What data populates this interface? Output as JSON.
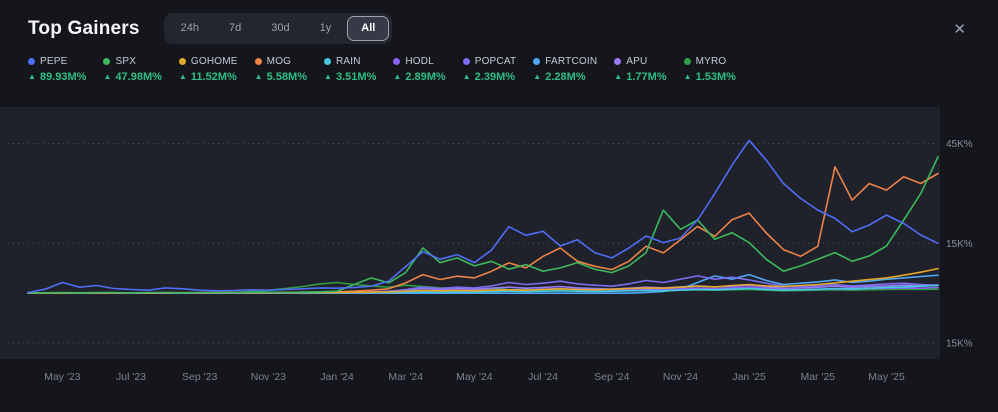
{
  "icons": {
    "close": "✕",
    "up_arrow": "▲"
  },
  "colors": {
    "background": "#14161c",
    "plot_background": "#1f222b",
    "gridline": "#4d525e",
    "positive": "#2ebd85"
  },
  "header": {
    "title": "Top Gainers",
    "ranges": [
      {
        "label": "24h",
        "active": false
      },
      {
        "label": "7d",
        "active": false
      },
      {
        "label": "30d",
        "active": false
      },
      {
        "label": "1y",
        "active": false
      },
      {
        "label": "All",
        "active": true
      }
    ]
  },
  "legend": [
    {
      "name": "PEPE",
      "color": "#4f6df6",
      "change": "89.93M%"
    },
    {
      "name": "SPX",
      "color": "#3cb85c",
      "change": "47.98M%"
    },
    {
      "name": "GOHOME",
      "color": "#e3a82b",
      "change": "11.52M%"
    },
    {
      "name": "MOG",
      "color": "#ee8147",
      "change": "5.58M%"
    },
    {
      "name": "RAIN",
      "color": "#46c8e0",
      "change": "3.51M%"
    },
    {
      "name": "HODL",
      "color": "#8a63f5",
      "change": "2.89M%"
    },
    {
      "name": "POPCAT",
      "color": "#7b6cf0",
      "change": "2.39M%"
    },
    {
      "name": "FARTCOIN",
      "color": "#4fa8f5",
      "change": "2.28M%"
    },
    {
      "name": "APU",
      "color": "#9a7bf7",
      "change": "1.77M%"
    },
    {
      "name": "MYRO",
      "color": "#2f9e44",
      "change": "1.53M%"
    }
  ],
  "chart_data": {
    "type": "line",
    "values_unit": "K% (thousands of percent)",
    "legend_position": "top",
    "grid": "dotted-horizontal",
    "n_points": 54,
    "ylim": [
      -18,
      53
    ],
    "gridlines": [
      {
        "value": 45,
        "label": "45K%"
      },
      {
        "value": 15,
        "label": "15K%"
      },
      {
        "value": -15,
        "label": "15K%"
      }
    ],
    "x_ticks": [
      {
        "i": 2,
        "label": "May '23"
      },
      {
        "i": 6,
        "label": "Jul '23"
      },
      {
        "i": 10,
        "label": "Sep '23"
      },
      {
        "i": 14,
        "label": "Nov '23"
      },
      {
        "i": 18,
        "label": "Jan '24"
      },
      {
        "i": 22,
        "label": "Mar '24"
      },
      {
        "i": 26,
        "label": "May '24"
      },
      {
        "i": 30,
        "label": "Jul '24"
      },
      {
        "i": 34,
        "label": "Sep '24"
      },
      {
        "i": 38,
        "label": "Nov '24"
      },
      {
        "i": 42,
        "label": "Jan '25"
      },
      {
        "i": 46,
        "label": "Mar '25"
      },
      {
        "i": 50,
        "label": "May '25"
      }
    ],
    "series": [
      {
        "name": "PEPE",
        "color": "#4f6df6",
        "values": [
          0.2,
          1.2,
          3.2,
          1.8,
          2.3,
          1.4,
          1.1,
          0.9,
          1.6,
          1.3,
          0.9,
          0.7,
          0.8,
          1.0,
          0.9,
          1.1,
          1.3,
          1.6,
          1.5,
          1.7,
          2.1,
          3.6,
          8.0,
          12.5,
          10.2,
          11.6,
          9.2,
          13.0,
          20.0,
          17.4,
          18.6,
          14.2,
          16.1,
          12.2,
          10.6,
          13.6,
          17.2,
          15.2,
          16.6,
          22.0,
          30.0,
          38.5,
          46.0,
          40.0,
          33.0,
          28.5,
          25.0,
          22.5,
          18.5,
          20.5,
          23.5,
          21.0,
          17.5,
          15.0
        ]
      },
      {
        "name": "SPX",
        "color": "#3cb85c",
        "values": [
          0.1,
          0.1,
          0.2,
          0.1,
          0.2,
          0.2,
          0.1,
          0.2,
          0.2,
          0.1,
          0.2,
          0.2,
          0.2,
          0.3,
          0.3,
          0.2,
          0.3,
          0.4,
          0.6,
          2.6,
          4.6,
          3.1,
          6.2,
          13.6,
          9.2,
          10.6,
          8.2,
          9.6,
          7.2,
          8.6,
          6.6,
          7.6,
          9.2,
          7.2,
          6.2,
          8.2,
          12.2,
          25.0,
          19.2,
          22.0,
          16.2,
          18.2,
          15.2,
          10.2,
          6.6,
          8.2,
          10.2,
          12.2,
          9.6,
          11.2,
          14.2,
          22.0,
          30.0,
          41.0
        ]
      },
      {
        "name": "GOHOME",
        "color": "#e3a82b",
        "values": [
          0.05,
          0.05,
          0.05,
          0.1,
          0.1,
          0.1,
          0.1,
          0.1,
          0.1,
          0.1,
          0.1,
          0.1,
          0.15,
          0.15,
          0.15,
          0.15,
          0.2,
          0.2,
          0.2,
          0.3,
          0.3,
          0.4,
          0.6,
          0.8,
          0.7,
          0.8,
          0.7,
          0.9,
          1.0,
          0.9,
          1.1,
          1.3,
          1.1,
          1.0,
          1.2,
          1.4,
          1.6,
          1.5,
          1.8,
          2.1,
          1.9,
          2.3,
          2.6,
          2.2,
          2.0,
          2.3,
          2.6,
          3.1,
          3.6,
          4.1,
          4.6,
          5.4,
          6.3,
          7.4
        ]
      },
      {
        "name": "MOG",
        "color": "#ee8147",
        "values": [
          0.05,
          0.05,
          0.1,
          0.1,
          0.1,
          0.1,
          0.1,
          0.1,
          0.15,
          0.15,
          0.15,
          0.2,
          0.2,
          0.2,
          0.25,
          0.25,
          0.3,
          0.35,
          0.4,
          0.6,
          0.9,
          1.3,
          3.1,
          5.6,
          4.1,
          5.1,
          4.6,
          6.6,
          9.1,
          7.6,
          11.1,
          13.6,
          9.6,
          8.1,
          7.1,
          9.6,
          14.1,
          12.1,
          16.1,
          20.1,
          17.1,
          22.1,
          24.1,
          18.1,
          13.1,
          11.1,
          14.1,
          38.0,
          28.0,
          33.0,
          31.0,
          35.0,
          33.0,
          36.0
        ]
      },
      {
        "name": "RAIN",
        "color": "#46c8e0",
        "values": [
          0.1,
          0.1,
          0.1,
          0.1,
          0.1,
          0.1,
          0.1,
          0.1,
          0.1,
          0.1,
          0.1,
          0.1,
          0.1,
          0.1,
          0.1,
          0.1,
          0.1,
          0.1,
          0.2,
          0.2,
          0.2,
          0.2,
          0.3,
          0.4,
          0.3,
          0.4,
          0.4,
          0.5,
          0.6,
          0.5,
          0.6,
          0.7,
          0.6,
          0.5,
          0.6,
          0.7,
          0.8,
          0.7,
          0.9,
          1.1,
          1.0,
          1.2,
          1.4,
          1.1,
          0.9,
          1.0,
          1.2,
          1.4,
          1.3,
          1.5,
          1.7,
          1.9,
          2.1,
          2.3
        ]
      },
      {
        "name": "HODL",
        "color": "#8a63f5",
        "values": [
          0.05,
          0.05,
          0.05,
          0.05,
          0.05,
          0.05,
          0.05,
          0.05,
          0.05,
          0.05,
          0.05,
          0.05,
          0.05,
          0.05,
          0.05,
          0.05,
          0.05,
          0.05,
          0.1,
          0.1,
          0.2,
          0.2,
          0.4,
          0.6,
          0.5,
          0.7,
          0.6,
          0.8,
          1.0,
          0.9,
          1.2,
          1.4,
          1.1,
          0.9,
          0.8,
          1.0,
          1.2,
          1.1,
          1.3,
          1.5,
          1.3,
          1.6,
          1.8,
          1.4,
          1.1,
          1.0,
          1.1,
          1.3,
          1.2,
          1.4,
          1.5,
          1.6,
          1.5,
          1.7
        ]
      },
      {
        "name": "POPCAT",
        "color": "#7b6cf0",
        "values": [
          0.05,
          0.05,
          0.05,
          0.05,
          0.05,
          0.05,
          0.05,
          0.05,
          0.05,
          0.05,
          0.05,
          0.05,
          0.05,
          0.05,
          0.05,
          0.05,
          0.1,
          0.1,
          0.2,
          0.3,
          0.4,
          0.6,
          1.1,
          1.8,
          1.4,
          1.8,
          1.6,
          2.2,
          3.2,
          2.6,
          3.0,
          3.6,
          2.8,
          2.4,
          2.1,
          2.8,
          3.8,
          3.2,
          4.2,
          5.2,
          4.2,
          4.8,
          4.0,
          3.0,
          2.2,
          2.0,
          2.3,
          2.6,
          2.2,
          2.5,
          2.8,
          3.0,
          2.6,
          2.4
        ]
      },
      {
        "name": "FARTCOIN",
        "color": "#4fa8f5",
        "values": [
          0.0,
          0.0,
          0.0,
          0.0,
          0.0,
          0.0,
          0.0,
          0.0,
          0.0,
          0.0,
          0.0,
          0.0,
          0.0,
          0.0,
          0.0,
          0.0,
          0.0,
          0.0,
          0.0,
          0.0,
          0.0,
          0.0,
          0.0,
          0.0,
          0.0,
          0.0,
          0.0,
          0.0,
          0.0,
          0.0,
          0.0,
          0.0,
          0.0,
          0.0,
          0.0,
          0.0,
          0.2,
          0.5,
          1.2,
          3.2,
          5.2,
          4.2,
          5.6,
          3.8,
          2.6,
          3.0,
          3.4,
          4.0,
          3.2,
          3.6,
          4.2,
          4.6,
          5.0,
          5.4
        ]
      },
      {
        "name": "APU",
        "color": "#9a7bf7",
        "values": [
          0.05,
          0.05,
          0.05,
          0.05,
          0.05,
          0.05,
          0.05,
          0.05,
          0.05,
          0.05,
          0.05,
          0.05,
          0.05,
          0.05,
          0.05,
          0.05,
          0.05,
          0.05,
          0.1,
          0.2,
          0.3,
          0.5,
          0.9,
          1.4,
          1.1,
          1.3,
          1.2,
          1.5,
          1.8,
          1.5,
          1.7,
          2.0,
          1.6,
          1.4,
          1.2,
          1.5,
          1.8,
          1.6,
          1.9,
          2.2,
          1.9,
          2.1,
          2.4,
          1.9,
          1.5,
          1.6,
          1.8,
          2.1,
          1.8,
          2.0,
          2.2,
          2.4,
          2.2,
          2.5
        ]
      },
      {
        "name": "MYRO",
        "color": "#2f9e44",
        "values": [
          0.05,
          0.05,
          0.05,
          0.05,
          0.05,
          0.05,
          0.05,
          0.05,
          0.05,
          0.05,
          0.05,
          0.05,
          0.2,
          0.5,
          0.9,
          1.4,
          2.0,
          2.8,
          3.2,
          2.6,
          2.2,
          1.8,
          2.4,
          2.0,
          1.6,
          1.4,
          1.2,
          1.4,
          1.1,
          1.0,
          0.9,
          1.0,
          0.9,
          0.8,
          0.7,
          0.8,
          0.9,
          0.8,
          0.9,
          1.0,
          0.9,
          1.0,
          1.1,
          0.9,
          0.7,
          0.8,
          0.9,
          1.0,
          0.9,
          1.0,
          1.1,
          1.2,
          1.1,
          1.2
        ]
      }
    ]
  }
}
